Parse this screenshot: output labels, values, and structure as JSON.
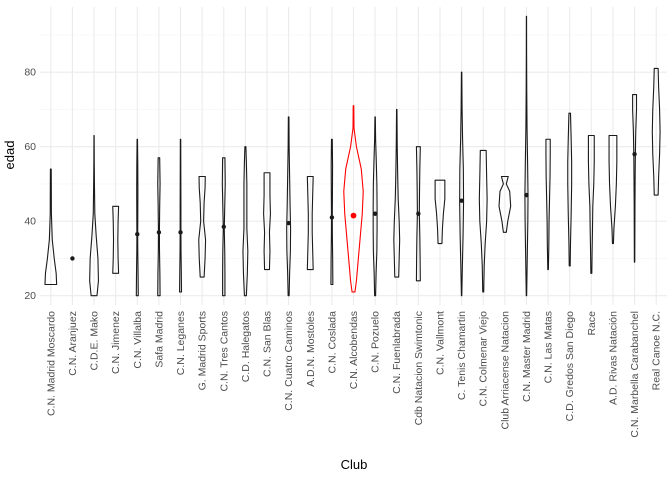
{
  "chart_data": {
    "type": "violin",
    "title": "",
    "xlabel": "Club",
    "ylabel": "edad",
    "ylim": [
      17.5,
      97.5
    ],
    "y_ticks": [
      20,
      40,
      60,
      80
    ],
    "grid": true,
    "legend": "none",
    "colors": {
      "default": "#1a1a1a",
      "highlight": "#ff0000",
      "grid": "#ebebeb",
      "grid_minor": "#f5f5f5"
    },
    "highlight_category": "C.N. Alcobendas",
    "categories": [
      "C.N. Madrid Moscardo",
      "C.N. Aranjuez",
      "C.D.E. Mako",
      "C.N. Jimenez",
      "C.N. Villalba",
      "Safa Madrid",
      "C.N. Leganes",
      "G. Madrid Sports",
      "C.N. Tres Cantos",
      "C.D. Halegatos",
      "C.N. San Blas",
      "C.N. Cuatro Caminos",
      "A.D.N. Mostoles",
      "C.N. Coslada",
      "C.N. Alcobendas",
      "C.N. Pozuelo",
      "C.N. Fuenlabrada",
      "Cdb Natacion Swimtonic",
      "C.N. Vallmont",
      "C. Tenis Chamartin",
      "C.N. Colmenar Viejo",
      "Club Arriacense Natacion",
      "C.N. Master Madrid",
      "C.N. Las Matas",
      "C.D. Gredos San Diego",
      "Race",
      "A.D. Rivas Natación",
      "C.N. Marbella Carabanchel",
      "Real Canoe N.C."
    ],
    "violins": [
      {
        "min": 23,
        "max": 54,
        "mean": null,
        "profile": [
          [
            23,
            0.6
          ],
          [
            26,
            0.55
          ],
          [
            30,
            0.35
          ],
          [
            35,
            0.15
          ],
          [
            42,
            0.06
          ],
          [
            50,
            0.05
          ],
          [
            54,
            0.04
          ]
        ]
      },
      {
        "min": 30,
        "max": 30,
        "mean": 30,
        "profile": []
      },
      {
        "min": 20,
        "max": 63,
        "mean": null,
        "profile": [
          [
            20,
            0.3
          ],
          [
            24,
            0.45
          ],
          [
            30,
            0.4
          ],
          [
            36,
            0.22
          ],
          [
            42,
            0.08
          ],
          [
            50,
            0.04
          ],
          [
            56,
            0.02
          ],
          [
            63,
            0.01
          ]
        ]
      },
      {
        "min": 26,
        "max": 44,
        "mean": null,
        "profile": [
          [
            26,
            0.3
          ],
          [
            30,
            0.25
          ],
          [
            35,
            0.22
          ],
          [
            40,
            0.25
          ],
          [
            44,
            0.3
          ]
        ]
      },
      {
        "min": 20,
        "max": 62,
        "mean": 36.5,
        "profile": [
          [
            20,
            0.1
          ],
          [
            26,
            0.08
          ],
          [
            32,
            0.05
          ],
          [
            36,
            0.04
          ],
          [
            40,
            0.05
          ],
          [
            48,
            0.06
          ],
          [
            55,
            0.05
          ],
          [
            62,
            0.02
          ]
        ]
      },
      {
        "min": 20,
        "max": 57,
        "mean": 37,
        "profile": [
          [
            20,
            0.12
          ],
          [
            26,
            0.1
          ],
          [
            32,
            0.06
          ],
          [
            37,
            0.05
          ],
          [
            44,
            0.08
          ],
          [
            50,
            0.12
          ],
          [
            57,
            0.08
          ]
        ]
      },
      {
        "min": 21,
        "max": 62,
        "mean": 37,
        "profile": [
          [
            21,
            0.1
          ],
          [
            26,
            0.08
          ],
          [
            32,
            0.05
          ],
          [
            37,
            0.04
          ],
          [
            44,
            0.04
          ],
          [
            52,
            0.03
          ],
          [
            62,
            0.02
          ]
        ]
      },
      {
        "min": 25,
        "max": 52,
        "mean": null,
        "profile": [
          [
            25,
            0.2
          ],
          [
            30,
            0.3
          ],
          [
            35,
            0.35
          ],
          [
            40,
            0.15
          ],
          [
            45,
            0.2
          ],
          [
            49,
            0.3
          ],
          [
            52,
            0.32
          ]
        ]
      },
      {
        "min": 20,
        "max": 57,
        "mean": 38.5,
        "profile": [
          [
            20,
            0.12
          ],
          [
            26,
            0.12
          ],
          [
            32,
            0.1
          ],
          [
            38,
            0.05
          ],
          [
            44,
            0.1
          ],
          [
            50,
            0.15
          ],
          [
            57,
            0.12
          ]
        ]
      },
      {
        "min": 20,
        "max": 60,
        "mean": null,
        "profile": [
          [
            20,
            0.1
          ],
          [
            26,
            0.2
          ],
          [
            32,
            0.25
          ],
          [
            38,
            0.15
          ],
          [
            44,
            0.15
          ],
          [
            50,
            0.15
          ],
          [
            56,
            0.1
          ],
          [
            60,
            0.05
          ]
        ]
      },
      {
        "min": 27,
        "max": 53,
        "mean": null,
        "profile": [
          [
            27,
            0.25
          ],
          [
            32,
            0.3
          ],
          [
            37,
            0.25
          ],
          [
            42,
            0.35
          ],
          [
            47,
            0.3
          ],
          [
            53,
            0.3
          ]
        ]
      },
      {
        "min": 20,
        "max": 68,
        "mean": 39.5,
        "profile": [
          [
            20,
            0.05
          ],
          [
            26,
            0.1
          ],
          [
            32,
            0.18
          ],
          [
            38,
            0.2
          ],
          [
            44,
            0.15
          ],
          [
            52,
            0.1
          ],
          [
            60,
            0.05
          ],
          [
            68,
            0.03
          ]
        ]
      },
      {
        "min": 27,
        "max": 52,
        "mean": null,
        "profile": [
          [
            27,
            0.3
          ],
          [
            32,
            0.25
          ],
          [
            37,
            0.2
          ],
          [
            42,
            0.2
          ],
          [
            47,
            0.25
          ],
          [
            52,
            0.3
          ]
        ]
      },
      {
        "min": 23,
        "max": 62,
        "mean": 41,
        "profile": [
          [
            23,
            0.1
          ],
          [
            30,
            0.08
          ],
          [
            36,
            0.05
          ],
          [
            41,
            0.04
          ],
          [
            48,
            0.06
          ],
          [
            55,
            0.07
          ],
          [
            62,
            0.04
          ]
        ]
      },
      {
        "min": 21,
        "max": 71,
        "mean": 41.5,
        "profile": [
          [
            21,
            0.15
          ],
          [
            24,
            0.3
          ],
          [
            30,
            0.5
          ],
          [
            36,
            0.7
          ],
          [
            42,
            0.9
          ],
          [
            48,
            1.0
          ],
          [
            54,
            0.8
          ],
          [
            60,
            0.3
          ],
          [
            65,
            0.05
          ],
          [
            71,
            0.03
          ]
        ]
      },
      {
        "min": 20,
        "max": 68,
        "mean": 42,
        "profile": [
          [
            20,
            0.05
          ],
          [
            26,
            0.1
          ],
          [
            32,
            0.18
          ],
          [
            38,
            0.2
          ],
          [
            44,
            0.2
          ],
          [
            50,
            0.18
          ],
          [
            56,
            0.12
          ],
          [
            62,
            0.05
          ],
          [
            68,
            0.02
          ]
        ]
      },
      {
        "min": 25,
        "max": 70,
        "mean": null,
        "profile": [
          [
            25,
            0.2
          ],
          [
            30,
            0.25
          ],
          [
            35,
            0.3
          ],
          [
            40,
            0.25
          ],
          [
            46,
            0.15
          ],
          [
            52,
            0.1
          ],
          [
            60,
            0.05
          ],
          [
            70,
            0.02
          ]
        ]
      },
      {
        "min": 24,
        "max": 60,
        "mean": 42,
        "profile": [
          [
            24,
            0.2
          ],
          [
            30,
            0.18
          ],
          [
            36,
            0.15
          ],
          [
            42,
            0.1
          ],
          [
            48,
            0.12
          ],
          [
            54,
            0.15
          ],
          [
            60,
            0.2
          ]
        ]
      },
      {
        "min": 34,
        "max": 51,
        "mean": null,
        "profile": [
          [
            34,
            0.2
          ],
          [
            38,
            0.25
          ],
          [
            42,
            0.35
          ],
          [
            46,
            0.5
          ],
          [
            51,
            0.5
          ]
        ]
      },
      {
        "min": 20,
        "max": 80,
        "mean": 45.5,
        "profile": [
          [
            20,
            0.02
          ],
          [
            28,
            0.08
          ],
          [
            36,
            0.15
          ],
          [
            45,
            0.2
          ],
          [
            54,
            0.18
          ],
          [
            62,
            0.1
          ],
          [
            70,
            0.05
          ],
          [
            80,
            0.02
          ]
        ]
      },
      {
        "min": 21,
        "max": 59,
        "mean": null,
        "profile": [
          [
            21,
            0.05
          ],
          [
            28,
            0.1
          ],
          [
            34,
            0.2
          ],
          [
            40,
            0.35
          ],
          [
            46,
            0.4
          ],
          [
            52,
            0.35
          ],
          [
            59,
            0.3
          ]
        ]
      },
      {
        "min": 37,
        "max": 52,
        "mean": null,
        "profile": [
          [
            37,
            0.15
          ],
          [
            40,
            0.3
          ],
          [
            44,
            0.6
          ],
          [
            48,
            0.5
          ],
          [
            50,
            0.15
          ],
          [
            52,
            0.35
          ]
        ]
      },
      {
        "min": 20,
        "max": 95,
        "mean": 47,
        "profile": [
          [
            20,
            0.02
          ],
          [
            30,
            0.08
          ],
          [
            40,
            0.14
          ],
          [
            47,
            0.16
          ],
          [
            55,
            0.12
          ],
          [
            65,
            0.06
          ],
          [
            75,
            0.03
          ],
          [
            85,
            0.015
          ],
          [
            95,
            0.01
          ]
        ]
      },
      {
        "min": 27,
        "max": 62,
        "mean": null,
        "profile": [
          [
            27,
            0.03
          ],
          [
            34,
            0.08
          ],
          [
            40,
            0.1
          ],
          [
            46,
            0.15
          ],
          [
            52,
            0.2
          ],
          [
            58,
            0.22
          ],
          [
            62,
            0.22
          ]
        ]
      },
      {
        "min": 28,
        "max": 69,
        "mean": null,
        "profile": [
          [
            28,
            0.05
          ],
          [
            34,
            0.08
          ],
          [
            42,
            0.15
          ],
          [
            50,
            0.2
          ],
          [
            56,
            0.2
          ],
          [
            62,
            0.15
          ],
          [
            69,
            0.08
          ]
        ]
      },
      {
        "min": 26,
        "max": 63,
        "mean": null,
        "profile": [
          [
            26,
            0.05
          ],
          [
            32,
            0.08
          ],
          [
            38,
            0.12
          ],
          [
            44,
            0.15
          ],
          [
            50,
            0.25
          ],
          [
            56,
            0.3
          ],
          [
            63,
            0.3
          ]
        ]
      },
      {
        "min": 34,
        "max": 63,
        "mean": null,
        "profile": [
          [
            34,
            0.05
          ],
          [
            38,
            0.1
          ],
          [
            44,
            0.25
          ],
          [
            50,
            0.35
          ],
          [
            56,
            0.4
          ],
          [
            63,
            0.4
          ]
        ]
      },
      {
        "min": 29,
        "max": 74,
        "mean": 58,
        "profile": [
          [
            29,
            0.02
          ],
          [
            36,
            0.03
          ],
          [
            44,
            0.04
          ],
          [
            52,
            0.06
          ],
          [
            58,
            0.08
          ],
          [
            64,
            0.12
          ],
          [
            70,
            0.2
          ],
          [
            74,
            0.2
          ]
        ]
      },
      {
        "min": 47,
        "max": 81,
        "mean": null,
        "profile": [
          [
            47,
            0.2
          ],
          [
            52,
            0.25
          ],
          [
            58,
            0.35
          ],
          [
            64,
            0.4
          ],
          [
            70,
            0.35
          ],
          [
            76,
            0.25
          ],
          [
            81,
            0.2
          ]
        ]
      }
    ]
  }
}
